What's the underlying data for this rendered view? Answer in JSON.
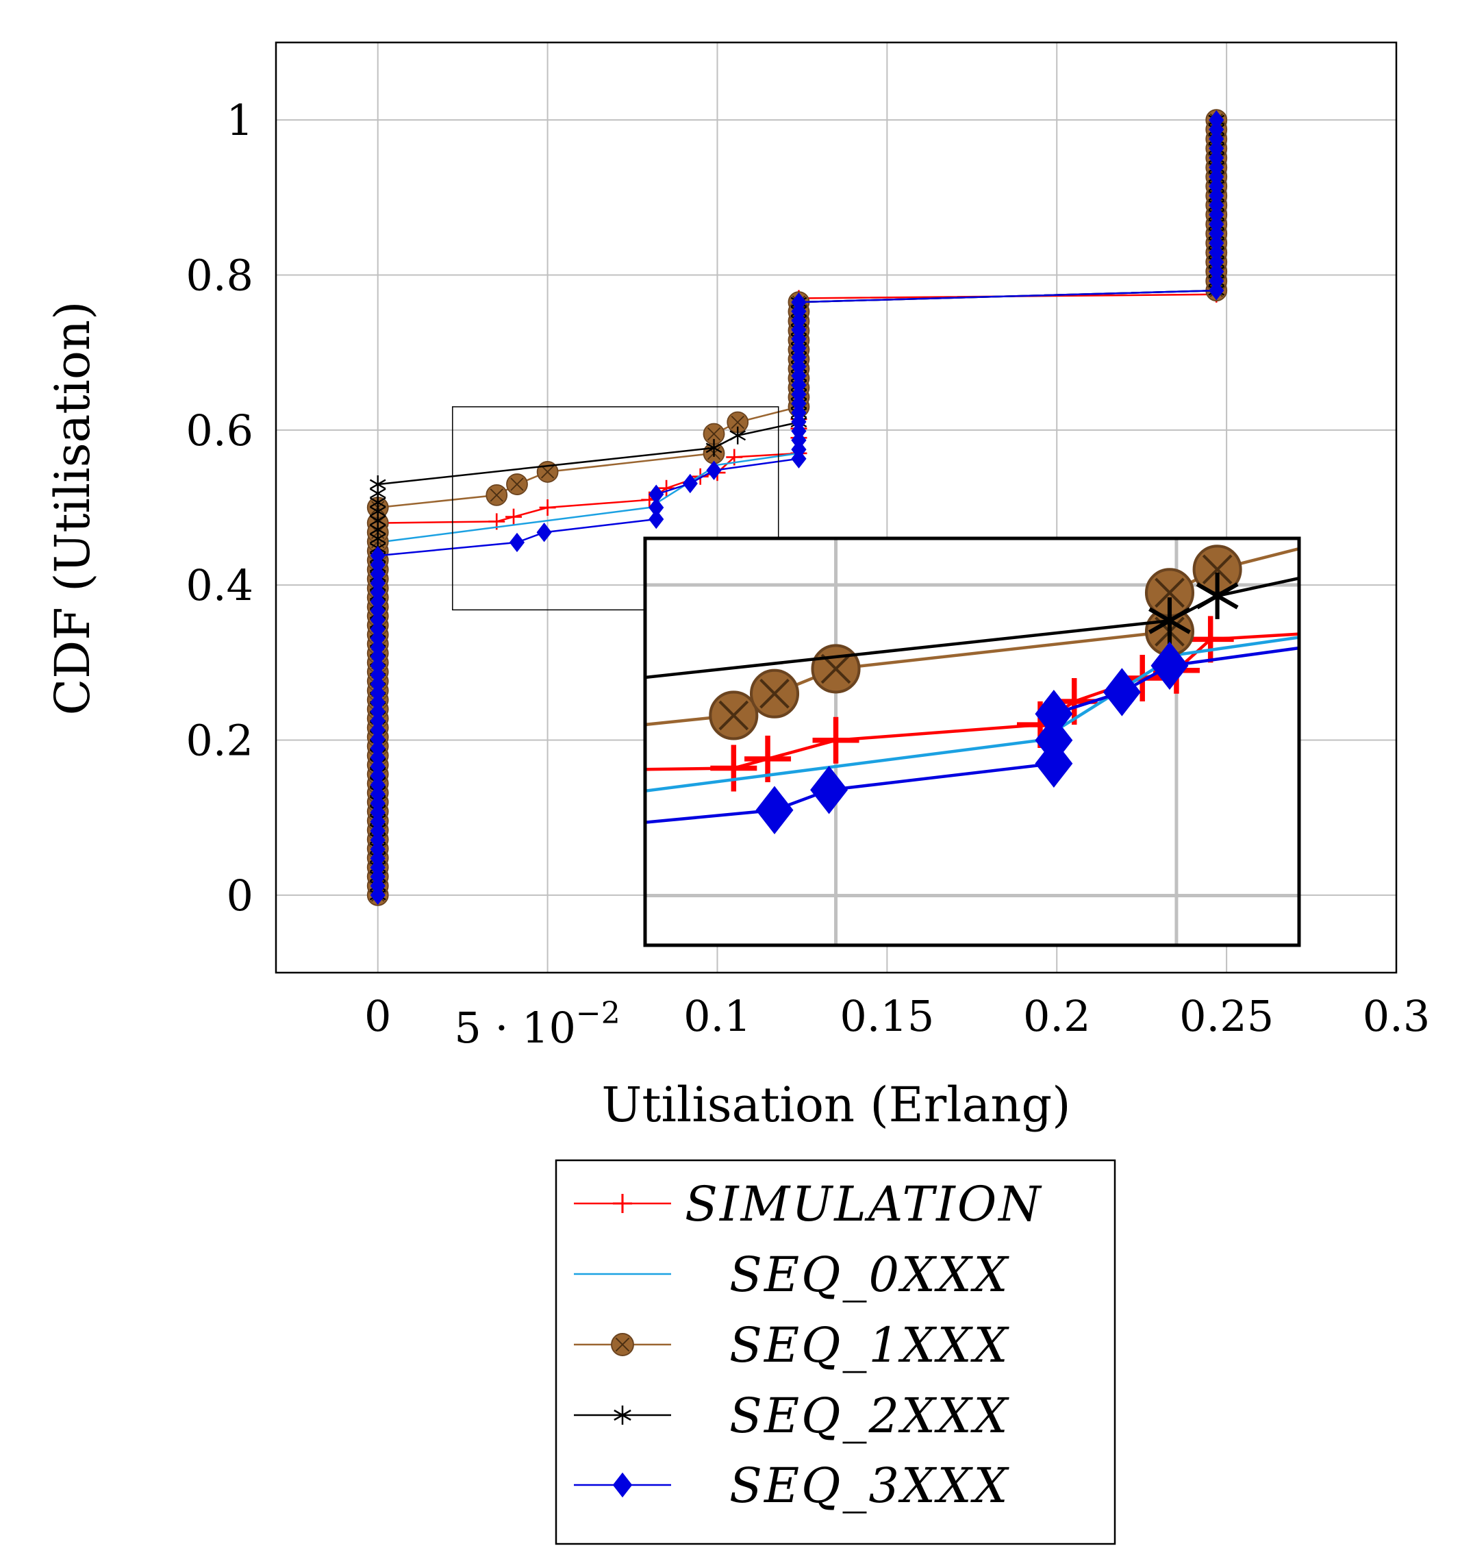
{
  "chart_data": {
    "type": "line",
    "xlabel": "Utilisation (Erlang)",
    "ylabel": "CDF (Utilisation)",
    "xlim": [
      -0.03,
      0.3
    ],
    "ylim": [
      -0.1,
      1.1
    ],
    "grid": true,
    "x_ticks": [
      0,
      0.05,
      0.1,
      0.15,
      0.2,
      0.25,
      0.3
    ],
    "x_tick_labels": [
      "0",
      "5 · 10",
      "0.1",
      "0.15",
      "0.2",
      "0.25",
      "0.3"
    ],
    "x_tick_exponent": "−2",
    "y_ticks": [
      0,
      0.2,
      0.4,
      0.6,
      0.8,
      1
    ],
    "y_tick_labels": [
      "0",
      "0.2",
      "0.4",
      "0.6",
      "0.8",
      "1"
    ],
    "legend_position": "below",
    "inset": {
      "description": "zoomed view",
      "xlim": [
        0.022,
        0.118
      ],
      "ylim": [
        0.368,
        0.63
      ],
      "placement": "bottom-right inside plot"
    },
    "series": [
      {
        "name": "SIMULATION",
        "color": "#ff0000",
        "marker": "plus",
        "x": [
          0,
          0,
          0.035,
          0.04,
          0.05,
          0.08,
          0.085,
          0.095,
          0.1,
          0.105,
          0.124,
          0.124,
          0.124,
          0.247,
          0.247,
          0.247
        ],
        "y": [
          0,
          0.48,
          0.482,
          0.488,
          0.5,
          0.51,
          0.525,
          0.54,
          0.545,
          0.565,
          0.57,
          0.59,
          0.77,
          0.775,
          0.9,
          1.0
        ]
      },
      {
        "name": "SEQ_0XXX",
        "color": "#1ba1e2",
        "marker": "none",
        "x": [
          0,
          0,
          0.08,
          0.1,
          0.124,
          0.124,
          0.247,
          0.247
        ],
        "y": [
          0,
          0.455,
          0.5,
          0.555,
          0.57,
          0.765,
          0.78,
          1.0
        ]
      },
      {
        "name": "SEQ_1XXX",
        "color": "#9a6530",
        "marker": "circle-x",
        "x": [
          0,
          0,
          0,
          0.035,
          0.041,
          0.05,
          0.099,
          0.099,
          0.106,
          0.124,
          0.124,
          0.247,
          0.247
        ],
        "y": [
          0,
          0.48,
          0.5,
          0.516,
          0.53,
          0.546,
          0.57,
          0.595,
          0.61,
          0.63,
          0.765,
          0.78,
          1.0
        ]
      },
      {
        "name": "SEQ_2XXX",
        "color": "#000000",
        "marker": "star",
        "x": [
          0,
          0,
          0,
          0.099,
          0.106,
          0.124,
          0.124,
          0.247,
          0.247
        ],
        "y": [
          0,
          0.46,
          0.53,
          0.577,
          0.593,
          0.61,
          0.765,
          0.78,
          1.0
        ]
      },
      {
        "name": "SEQ_3XXX",
        "color": "#0000e0",
        "marker": "diamond",
        "x": [
          0,
          0,
          0.041,
          0.049,
          0.082,
          0.082,
          0.082,
          0.092,
          0.099,
          0.124,
          0.124,
          0.247,
          0.247
        ],
        "y": [
          0,
          0.438,
          0.455,
          0.468,
          0.485,
          0.5,
          0.517,
          0.531,
          0.548,
          0.563,
          0.765,
          0.78,
          1.0
        ]
      }
    ]
  }
}
